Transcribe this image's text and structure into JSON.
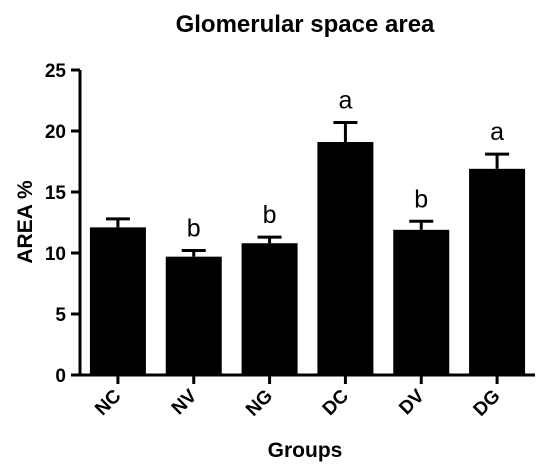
{
  "chart_data": {
    "type": "bar",
    "title": "Glomerular space area",
    "xlabel": "Groups",
    "ylabel": "AREA %",
    "ylim": [
      0,
      25
    ],
    "yticks": [
      0,
      5,
      10,
      15,
      20,
      25
    ],
    "categories": [
      "NC",
      "NV",
      "NG",
      "DC",
      "DV",
      "DG"
    ],
    "values": [
      12.1,
      9.7,
      10.8,
      19.1,
      11.9,
      16.9
    ],
    "errors": [
      0.7,
      0.5,
      0.5,
      1.6,
      0.7,
      1.2
    ],
    "annotations": [
      "",
      "b",
      "b",
      "a",
      "b",
      "a"
    ],
    "bar_color": "#000000",
    "grid": false,
    "legend": "none"
  }
}
